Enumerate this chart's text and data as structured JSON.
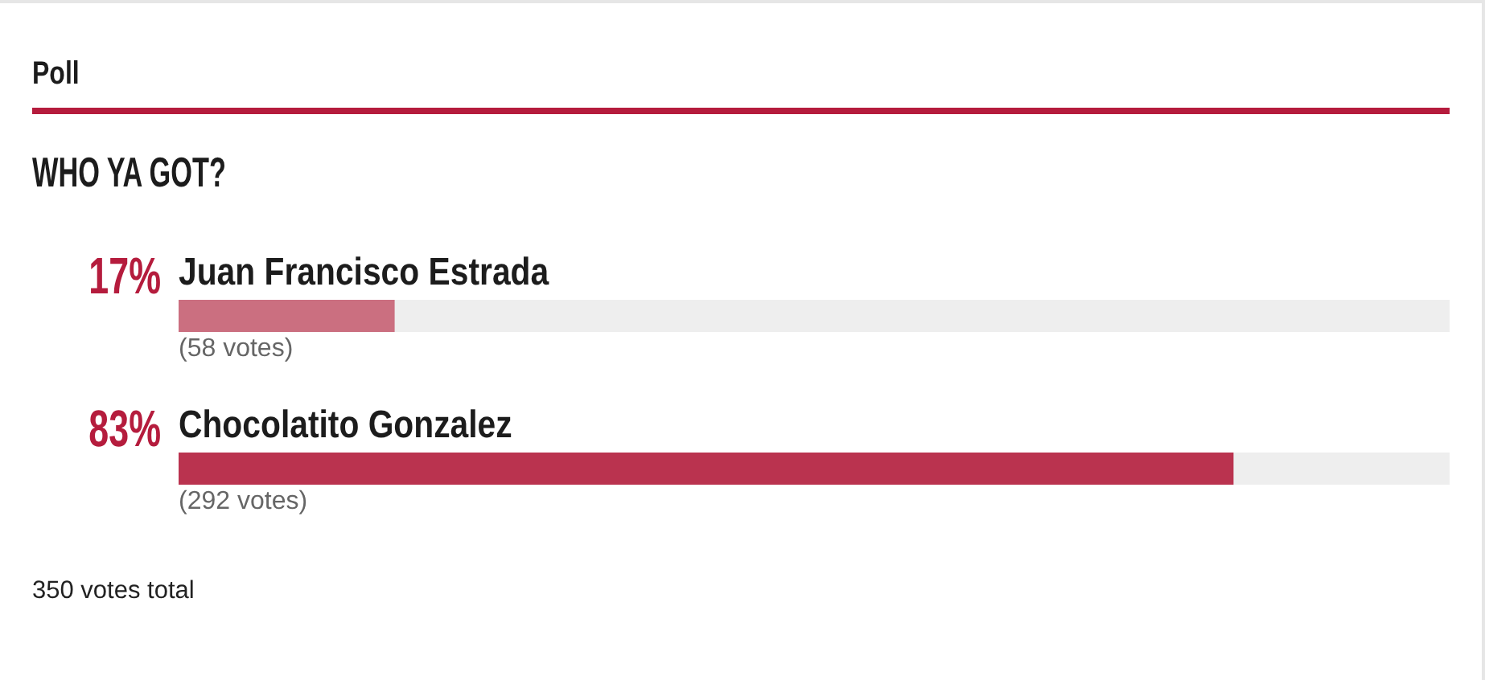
{
  "chart_data": {
    "type": "bar",
    "orientation": "horizontal",
    "title": "Poll",
    "subtitle": "WHO YA GOT?",
    "categories": [
      "Juan Francisco Estrada",
      "Chocolatito Gonzalez"
    ],
    "values": [
      17,
      83
    ],
    "colors": [
      "#cb6f80",
      "#ba334f"
    ],
    "value_labels": [
      "17%",
      "83%"
    ],
    "xlim": [
      0,
      100
    ],
    "tick_labels": "y",
    "annotations": [
      {
        "text": "(58 votes)",
        "x": 0,
        "y": "Juan Francisco Estrada"
      },
      {
        "text": "(292 votes)",
        "x": 0,
        "y": "Chocolatito Gonzalez"
      },
      "350 votes total"
    ]
  }
}
